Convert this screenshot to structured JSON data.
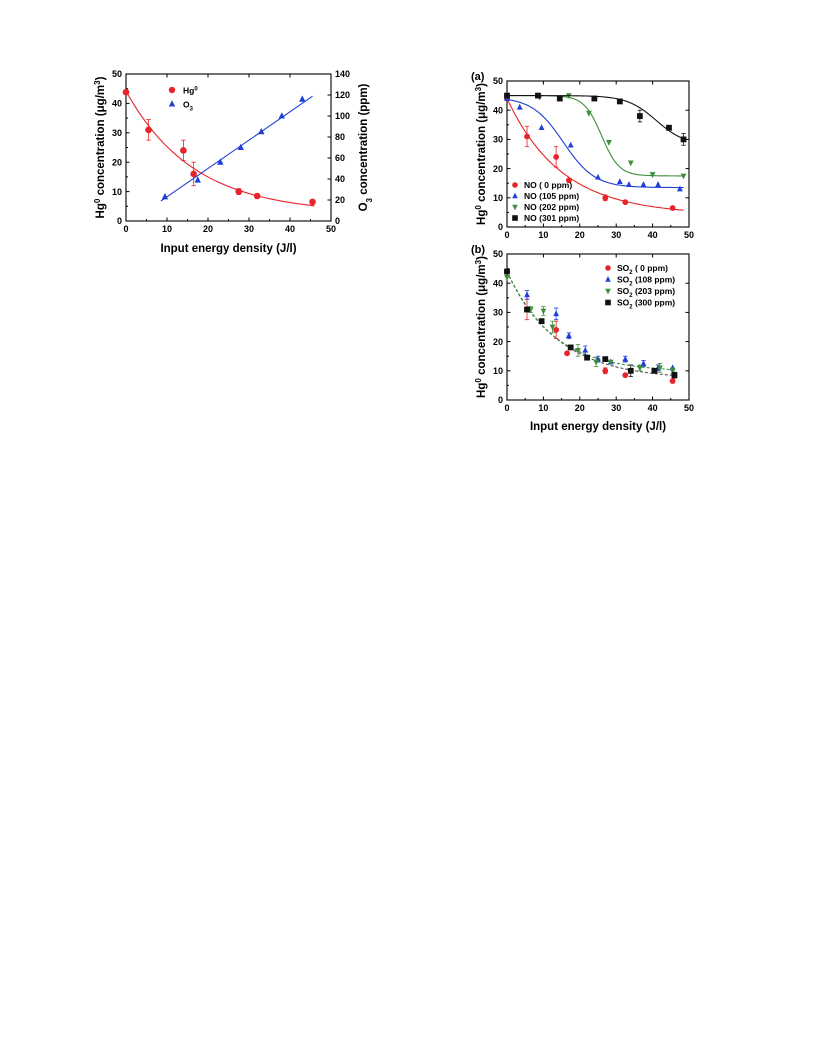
{
  "chart_data": [
    {
      "type": "scatter",
      "xlabel": "Input energy density (J/l)",
      "ylabel": "Hg⁰ concentration (μg/m³)",
      "y2label": "O₃ concentration (ppm)",
      "xlim": [
        0,
        50
      ],
      "ylim": [
        0,
        50
      ],
      "y2lim": [
        0,
        140
      ],
      "xticks": [
        "0",
        "10",
        "20",
        "30",
        "40",
        "50"
      ],
      "yticks": [
        "0",
        "10",
        "20",
        "30",
        "40",
        "50"
      ],
      "y2ticks": [
        "0",
        "20",
        "40",
        "60",
        "80",
        "100",
        "120",
        "140"
      ],
      "legend_position": "top-left",
      "series": [
        {
          "name": "Hg⁰",
          "axis": "left",
          "marker": "circle",
          "color": "#e8232a",
          "x": [
            0,
            5.5,
            14,
            16.5,
            27.5,
            32,
            45.5
          ],
          "y": [
            43.8,
            31,
            24,
            16,
            10,
            8.5,
            6.5
          ],
          "err": [
            0,
            3.5,
            3.5,
            4,
            1,
            0.5,
            0.5
          ],
          "fit": "exp_decay",
          "fit_range": [
            0,
            46
          ]
        },
        {
          "name": "O₃",
          "axis": "right",
          "marker": "triangle",
          "color": "#1f3fd6",
          "x": [
            9.5,
            17.5,
            23,
            28,
            33,
            38,
            43
          ],
          "y": [
            23,
            39,
            56,
            70,
            85,
            100,
            116
          ],
          "fit": "linear",
          "fit_range": [
            8.5,
            45.5
          ]
        }
      ]
    },
    {
      "type": "scatter",
      "panel_label": "(a)",
      "ylabel": "Hg⁰ concentration (μg/m³)",
      "xlim": [
        0,
        50
      ],
      "ylim": [
        0,
        50
      ],
      "xticks": [
        "0",
        "10",
        "20",
        "30",
        "40",
        "50"
      ],
      "yticks": [
        "0",
        "10",
        "20",
        "30",
        "40",
        "50"
      ],
      "legend_position": "bottom-left",
      "series": [
        {
          "name": "NO (    0 ppm)",
          "marker": "circle",
          "color": "#e8232a",
          "x": [
            0,
            5.5,
            13.5,
            17,
            27,
            32.5,
            45.5
          ],
          "y": [
            44,
            31,
            24,
            16,
            10,
            8.5,
            6.5
          ],
          "err": [
            0,
            3.5,
            3.5,
            0,
            1,
            0.5,
            0.5
          ]
        },
        {
          "name": "NO  (105 ppm)",
          "marker": "triangle",
          "color": "#1f3fd6",
          "x": [
            0,
            3.5,
            9.5,
            17.5,
            25,
            31,
            33.5,
            37.5,
            41.5,
            47.5
          ],
          "y": [
            44,
            41,
            34,
            28,
            17,
            15.5,
            14.5,
            14.5,
            14.5,
            13
          ]
        },
        {
          "name": "NO  (202 ppm)",
          "marker": "triangle-down",
          "color": "#3f8f3a",
          "x": [
            0,
            9,
            17,
            22.5,
            28,
            34,
            40,
            48.5
          ],
          "y": [
            45,
            44.5,
            45,
            39,
            29,
            22,
            18,
            17.5
          ]
        },
        {
          "name": "NO  (301 ppm)",
          "marker": "square",
          "color": "#111111",
          "x": [
            0,
            8.5,
            14.5,
            24,
            31,
            36.5,
            44.5,
            48.5
          ],
          "y": [
            45,
            45,
            44,
            44,
            43,
            38,
            34,
            30
          ],
          "err": [
            0,
            0,
            0,
            0,
            0,
            2,
            0,
            2
          ]
        }
      ]
    },
    {
      "type": "scatter",
      "panel_label": "(b)",
      "xlabel": "Input energy density (J/l)",
      "ylabel": "Hg⁰ concentration (μg/m³)",
      "xlim": [
        0,
        50
      ],
      "ylim": [
        0,
        50
      ],
      "xticks": [
        "0",
        "10",
        "20",
        "30",
        "40",
        "50"
      ],
      "yticks": [
        "0",
        "10",
        "20",
        "30",
        "40",
        "50"
      ],
      "legend_position": "top-right",
      "series": [
        {
          "name": "SO₂  (    0 ppm)",
          "marker": "circle",
          "color": "#e8232a",
          "x": [
            0,
            5.5,
            13.5,
            16.5,
            27,
            32.5,
            45.5
          ],
          "y": [
            44,
            31,
            24,
            16,
            10,
            8.5,
            6.5
          ],
          "err": [
            0,
            3.5,
            3,
            0,
            1,
            0.5,
            0.5
          ]
        },
        {
          "name": "SO₂  (108 ppm)",
          "marker": "triangle",
          "color": "#1f3fd6",
          "x": [
            0,
            5.5,
            13.5,
            17,
            21.5,
            25,
            28.5,
            32.5,
            37.5,
            41.5,
            45.5
          ],
          "y": [
            44,
            36,
            29.5,
            22,
            17,
            14,
            13,
            14,
            12.5,
            11,
            11
          ],
          "err": [
            0,
            1.5,
            2,
            1,
            1.5,
            1,
            0,
            1,
            1,
            1,
            0
          ]
        },
        {
          "name": "SO₂  (203 ppm)",
          "marker": "triangle-down",
          "color": "#3f8f3a",
          "x": [
            0,
            6.5,
            10,
            12.5,
            19.5,
            24.5,
            28.5,
            36.5,
            42,
            45.5
          ],
          "y": [
            42,
            31,
            30.5,
            25,
            17,
            13,
            13,
            11,
            11,
            10
          ],
          "err": [
            0,
            1,
            1.5,
            2,
            2,
            1.5,
            0,
            1,
            1.5,
            1
          ]
        },
        {
          "name": "SO₂  (300 ppm)",
          "marker": "square",
          "color": "#111111",
          "x": [
            0,
            5.5,
            9.5,
            17.5,
            22,
            27,
            34,
            40.5,
            46
          ],
          "y": [
            44,
            31,
            27,
            18,
            14.5,
            14,
            10,
            10,
            8.5
          ],
          "err": [
            0,
            0,
            0,
            0,
            0,
            0,
            2,
            0,
            1
          ]
        }
      ]
    }
  ]
}
